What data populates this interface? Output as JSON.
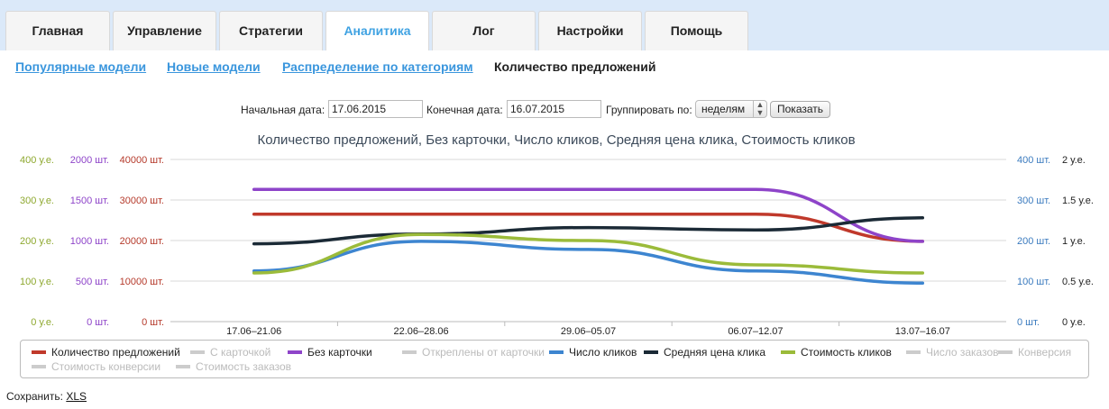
{
  "tabs": [
    {
      "label": "Главная",
      "active": false
    },
    {
      "label": "Управление",
      "active": false
    },
    {
      "label": "Стратегии",
      "active": false
    },
    {
      "label": "Аналитика",
      "active": true
    },
    {
      "label": "Лог",
      "active": false
    },
    {
      "label": "Настройки",
      "active": false
    },
    {
      "label": "Помощь",
      "active": false
    }
  ],
  "subnav": [
    {
      "label": "Популярные модели",
      "link": true
    },
    {
      "label": "Новые модели",
      "link": true
    },
    {
      "label": "Распределение по категориям",
      "link": true
    },
    {
      "label": "Количество предложений",
      "link": false
    }
  ],
  "filters": {
    "start_label": "Начальная дата:",
    "start_value": "17.06.2015",
    "end_label": "Конечная дата:",
    "end_value": "16.07.2015",
    "group_label": "Группировать по:",
    "group_value": "неделям",
    "show_button": "Показать"
  },
  "chart_data": {
    "type": "line",
    "title": "Количество предложений, Без карточки, Число кликов, Средняя цена клика, Стоимость кликов",
    "categories": [
      "17.06–21.06",
      "22.06–28.06",
      "29.06–05.07",
      "06.07–12.07",
      "13.07–16.07"
    ],
    "axes": {
      "left_cost": {
        "ticks": [
          "0 у.е.",
          "100 у.е.",
          "200 у.е.",
          "300 у.е.",
          "400 у.е."
        ],
        "range": [
          0,
          400
        ],
        "color": "#8ea82f"
      },
      "left_nocard": {
        "ticks": [
          "0 шт.",
          "500 шт.",
          "1000 шт.",
          "1500 шт.",
          "2000 шт."
        ],
        "range": [
          0,
          2000
        ],
        "color": "#8e44c9"
      },
      "left_offers": {
        "ticks": [
          "0 шт.",
          "10000 шт.",
          "20000 шт.",
          "30000 шт.",
          "40000 шт."
        ],
        "range": [
          0,
          40000
        ],
        "color": "#b53a2b"
      },
      "right_clicks": {
        "ticks": [
          "0 шт.",
          "100 шт.",
          "200 шт.",
          "300 шт.",
          "400 шт."
        ],
        "range": [
          0,
          400
        ],
        "color": "#3b7bbf"
      },
      "right_cpc": {
        "ticks": [
          "0 у.е.",
          "0.5 у.е.",
          "1 у.е.",
          "1.5 у.е.",
          "2 у.е."
        ],
        "range": [
          0,
          2
        ],
        "color": "#222"
      }
    },
    "series": [
      {
        "name": "Количество предложений",
        "axis": "left_offers",
        "color": "#c0392b",
        "values": [
          26500,
          26500,
          26500,
          26500,
          19800
        ]
      },
      {
        "name": "Без карточки",
        "axis": "left_nocard",
        "color": "#8e44c9",
        "values": [
          1630,
          1630,
          1630,
          1630,
          990
        ]
      },
      {
        "name": "Число кликов",
        "axis": "right_clicks",
        "color": "#3d85d0",
        "values": [
          125,
          198,
          178,
          125,
          95
        ]
      },
      {
        "name": "Средняя цена клика",
        "axis": "right_cpc",
        "color": "#1b2a36",
        "values": [
          0.96,
          1.08,
          1.16,
          1.13,
          1.28
        ]
      },
      {
        "name": "Стоимость кликов",
        "axis": "left_cost",
        "color": "#9bbb3a",
        "values": [
          120,
          215,
          200,
          140,
          120
        ]
      }
    ]
  },
  "legend": [
    {
      "label": "Количество предложений",
      "color": "#c0392b",
      "enabled": true
    },
    {
      "label": "С карточкой",
      "color": "#cccccc",
      "enabled": false
    },
    {
      "label": "Без карточки",
      "color": "#8e44c9",
      "enabled": true
    },
    {
      "label": "Откреплены от карточки",
      "color": "#cccccc",
      "enabled": false
    },
    {
      "label": "Число кликов",
      "color": "#3d85d0",
      "enabled": true
    },
    {
      "label": "Средняя цена клика",
      "color": "#1b2a36",
      "enabled": true
    },
    {
      "label": "Стоимость кликов",
      "color": "#9bbb3a",
      "enabled": true
    },
    {
      "label": "Число заказов",
      "color": "#cccccc",
      "enabled": false
    },
    {
      "label": "Конверсия",
      "color": "#cccccc",
      "enabled": false
    },
    {
      "label": "Стоимость конверсии",
      "color": "#cccccc",
      "enabled": false
    },
    {
      "label": "Стоимость заказов",
      "color": "#cccccc",
      "enabled": false
    }
  ],
  "save": {
    "label": "Сохранить:",
    "link": "XLS"
  }
}
